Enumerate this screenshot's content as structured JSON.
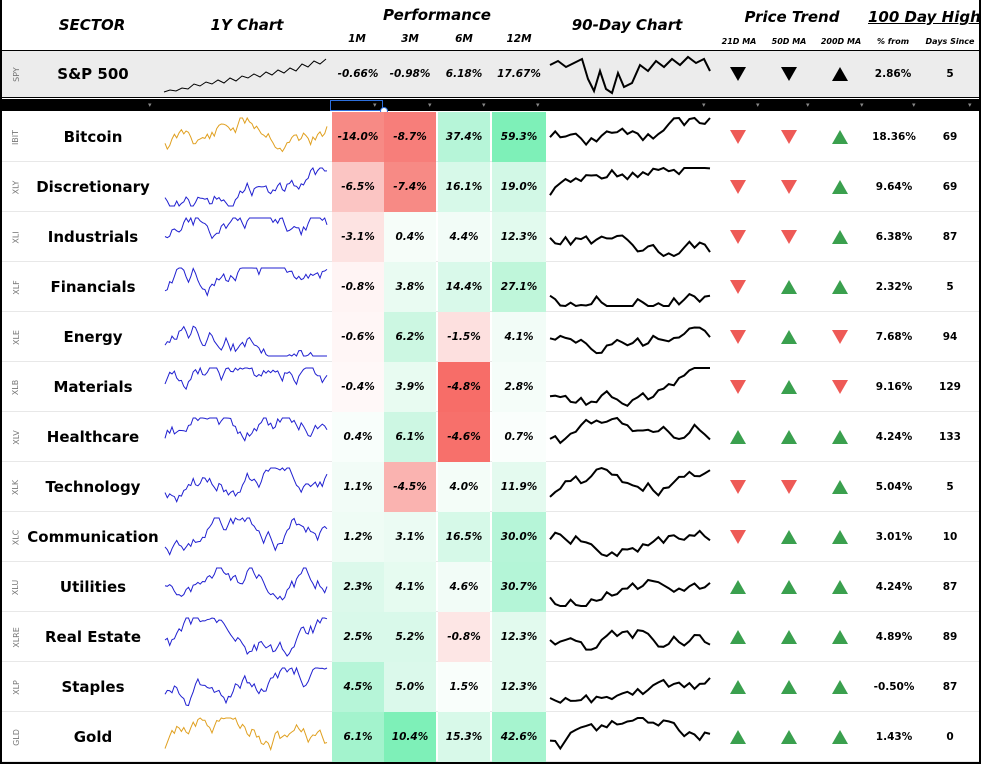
{
  "headers": {
    "sector": "SECTOR",
    "chart1y": "1Y Chart",
    "performance": "Performance",
    "m1": "1M",
    "m3": "3M",
    "m6": "6M",
    "m12": "12M",
    "chart90": "90-Day Chart",
    "price_trend": "Price Trend",
    "ma21": "21D MA",
    "ma50": "50D MA",
    "ma200": "200D MA",
    "high100": "100 Day High",
    "pct_from": "% from",
    "days_since": "Days Since"
  },
  "spy": {
    "ticker": "SPY",
    "name": "S&P 500",
    "m1": "-0.66%",
    "m3": "-0.98%",
    "m6": "6.18%",
    "m12": "17.67%",
    "trend": [
      "down",
      "down",
      "up"
    ],
    "pct_from": "2.86%",
    "days": "5"
  },
  "rows": [
    {
      "ticker": "IBIT",
      "name": "Bitcoin",
      "gold": true,
      "perf": [
        "-14.0%",
        "-8.7%",
        "37.4%",
        "59.3%"
      ],
      "colors": [
        "#f78a85",
        "#f77e7a",
        "#b6f5d8",
        "#7ef0b8"
      ],
      "trend": [
        "down",
        "down",
        "up"
      ],
      "pct_from": "18.36%",
      "days": "69"
    },
    {
      "ticker": "XLY",
      "name": "Discretionary",
      "gold": false,
      "perf": [
        "-6.5%",
        "-7.4%",
        "16.1%",
        "19.0%"
      ],
      "colors": [
        "#fbc5c3",
        "#f78a85",
        "#d7f9e9",
        "#d2f8e6"
      ],
      "trend": [
        "down",
        "down",
        "up"
      ],
      "pct_from": "9.64%",
      "days": "69"
    },
    {
      "ticker": "XLI",
      "name": "Industrials",
      "gold": false,
      "perf": [
        "-3.1%",
        "0.4%",
        "4.4%",
        "12.3%"
      ],
      "colors": [
        "#fde3e2",
        "#f6fdf9",
        "#f2fcf7",
        "#e2faee"
      ],
      "trend": [
        "down",
        "down",
        "up"
      ],
      "pct_from": "6.38%",
      "days": "87"
    },
    {
      "ticker": "XLF",
      "name": "Financials",
      "gold": false,
      "perf": [
        "-0.8%",
        "3.8%",
        "14.4%",
        "27.1%"
      ],
      "colors": [
        "#fff4f4",
        "#e9fbf2",
        "#d9f9ea",
        "#bff6da"
      ],
      "trend": [
        "down",
        "up",
        "up"
      ],
      "pct_from": "2.32%",
      "days": "5"
    },
    {
      "ticker": "XLE",
      "name": "Energy",
      "gold": false,
      "perf": [
        "-0.6%",
        "6.2%",
        "-1.5%",
        "4.1%"
      ],
      "colors": [
        "#fff6f6",
        "#ccf7e2",
        "#fde0df",
        "#f2fcf7"
      ],
      "trend": [
        "down",
        "up",
        "down"
      ],
      "pct_from": "7.68%",
      "days": "94"
    },
    {
      "ticker": "XLB",
      "name": "Materials",
      "gold": false,
      "perf": [
        "-0.4%",
        "3.9%",
        "-4.8%",
        "2.8%"
      ],
      "colors": [
        "#fff8f8",
        "#e8fbf1",
        "#f76d68",
        "#f5fdf9"
      ],
      "trend": [
        "down",
        "up",
        "down"
      ],
      "pct_from": "9.16%",
      "days": "129"
    },
    {
      "ticker": "XLV",
      "name": "Healthcare",
      "gold": false,
      "perf": [
        "0.4%",
        "6.1%",
        "-4.6%",
        "0.7%"
      ],
      "colors": [
        "#f8fefb",
        "#cdf7e3",
        "#f7706b",
        "#fafefc"
      ],
      "trend": [
        "up",
        "up",
        "up"
      ],
      "pct_from": "4.24%",
      "days": "133"
    },
    {
      "ticker": "XLK",
      "name": "Technology",
      "gold": false,
      "perf": [
        "1.1%",
        "-4.5%",
        "4.0%",
        "11.9%"
      ],
      "colors": [
        "#f2fcf7",
        "#fab3b0",
        "#f4fdf8",
        "#e4faef"
      ],
      "trend": [
        "down",
        "down",
        "up"
      ],
      "pct_from": "5.04%",
      "days": "5"
    },
    {
      "ticker": "XLC",
      "name": "Communication",
      "gold": false,
      "perf": [
        "1.2%",
        "3.1%",
        "16.5%",
        "30.0%"
      ],
      "colors": [
        "#effcf5",
        "#ebfbf3",
        "#d6f9e8",
        "#b6f5d8"
      ],
      "trend": [
        "down",
        "up",
        "up"
      ],
      "pct_from": "3.01%",
      "days": "10"
    },
    {
      "ticker": "XLU",
      "name": "Utilities",
      "gold": false,
      "perf": [
        "2.3%",
        "4.1%",
        "4.6%",
        "30.7%"
      ],
      "colors": [
        "#dcf9eb",
        "#e6fbf0",
        "#f2fcf7",
        "#b4f5d7"
      ],
      "trend": [
        "up",
        "up",
        "up"
      ],
      "pct_from": "4.24%",
      "days": "87"
    },
    {
      "ticker": "XLRE",
      "name": "Real Estate",
      "gold": false,
      "perf": [
        "2.5%",
        "5.2%",
        "-0.8%",
        "12.3%"
      ],
      "colors": [
        "#d9f9ea",
        "#d9f9ea",
        "#fde6e5",
        "#e2faee"
      ],
      "trend": [
        "up",
        "up",
        "up"
      ],
      "pct_from": "4.89%",
      "days": "89"
    },
    {
      "ticker": "XLP",
      "name": "Staples",
      "gold": false,
      "perf": [
        "4.5%",
        "5.0%",
        "1.5%",
        "12.3%"
      ],
      "colors": [
        "#b6f5d8",
        "#dbf9eb",
        "#f9fefb",
        "#e2faee"
      ],
      "trend": [
        "up",
        "up",
        "up"
      ],
      "pct_from": "-0.50%",
      "days": "87"
    },
    {
      "ticker": "GLD",
      "name": "Gold",
      "gold": true,
      "perf": [
        "6.1%",
        "10.4%",
        "15.3%",
        "42.6%"
      ],
      "colors": [
        "#a3f3cd",
        "#7ef0b8",
        "#d8f9e9",
        "#a6f4cf"
      ],
      "trend": [
        "up",
        "up",
        "up"
      ],
      "pct_from": "1.43%",
      "days": "0"
    }
  ]
}
